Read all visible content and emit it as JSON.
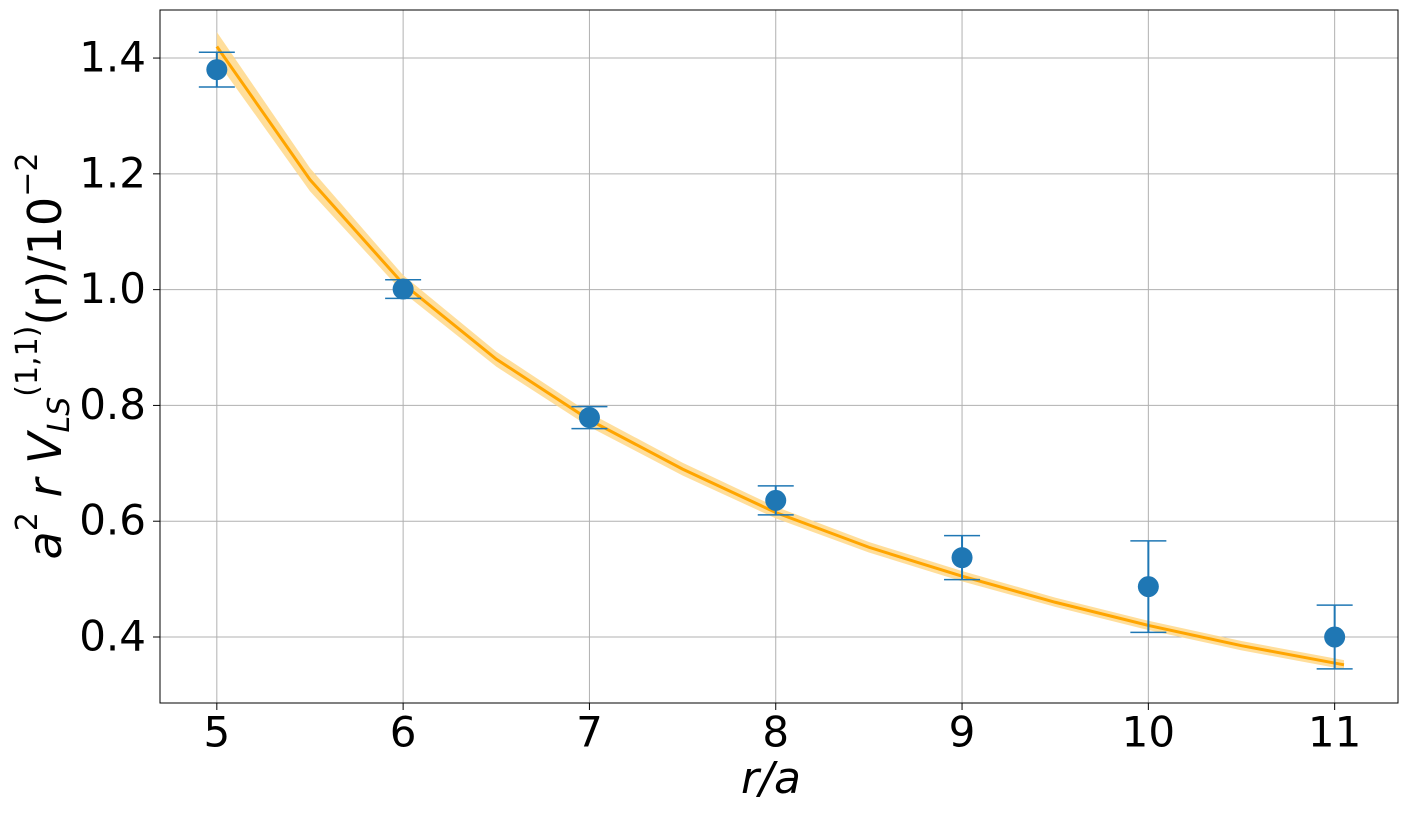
{
  "chart_data": {
    "type": "errorbar",
    "xlabel": "r/a",
    "ylabel": [
      "a",
      "2",
      " r V",
      "LS",
      "(1,1)",
      "(r)/10",
      "−2"
    ],
    "x": [
      5,
      6,
      7,
      8,
      9,
      10,
      11
    ],
    "series": [
      {
        "color": "#1f77b4",
        "values": [
          1.38,
          1.001,
          0.779,
          0.636,
          0.537,
          0.487,
          0.4
        ],
        "errors": [
          0.03,
          0.016,
          0.019,
          0.025,
          0.038,
          0.079,
          0.055
        ]
      }
    ],
    "fit": {
      "color": "#ffa500",
      "band_color": "#ffd88a",
      "x": [
        5,
        5.5,
        6,
        6.5,
        7,
        7.5,
        8,
        8.5,
        9,
        9.5,
        10,
        10.5,
        11.05
      ],
      "y": [
        1.42,
        1.19,
        1.01,
        0.88,
        0.775,
        0.69,
        0.615,
        0.555,
        0.505,
        0.46,
        0.42,
        0.385,
        0.352
      ],
      "lower": [
        1.395,
        1.17,
        0.995,
        0.867,
        0.763,
        0.679,
        0.605,
        0.546,
        0.496,
        0.452,
        0.412,
        0.377,
        0.344
      ],
      "upper": [
        1.445,
        1.21,
        1.025,
        0.893,
        0.787,
        0.701,
        0.625,
        0.564,
        0.514,
        0.468,
        0.428,
        0.393,
        0.36
      ]
    },
    "xlim": [
      4.695,
      11.34
    ],
    "ylim": [
      0.286,
      1.483
    ],
    "xticks": [
      5,
      6,
      7,
      8,
      9,
      10,
      11
    ],
    "yticks": [
      0.4,
      0.6,
      0.8,
      {
        "value": 1,
        "label": "1.0"
      },
      1.2,
      1.4
    ],
    "grid": true
  }
}
